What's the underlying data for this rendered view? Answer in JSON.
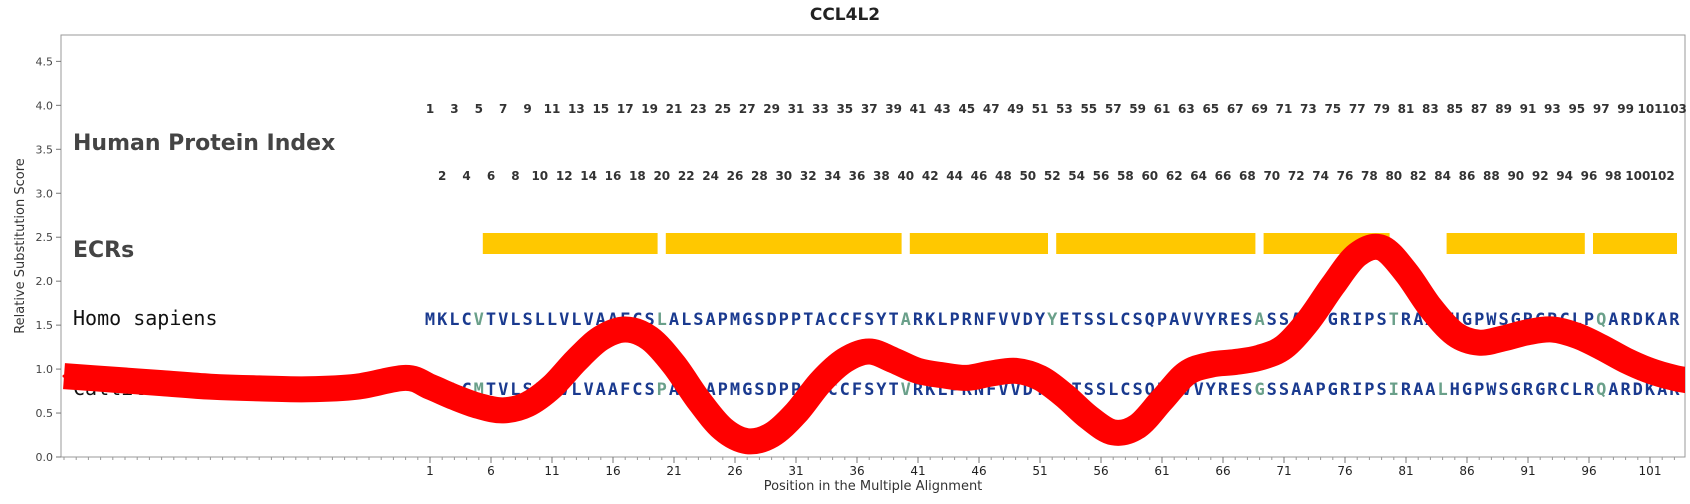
{
  "chart_data": {
    "type": "line",
    "title": "CCL4L2",
    "xlabel": "Position in the Multiple Alignment",
    "ylabel": "Relative Substitution Score",
    "xlim": [
      -29,
      105
    ],
    "ylim": [
      0,
      4.8
    ],
    "y_ticks": [
      0.0,
      0.5,
      1.0,
      1.5,
      2.0,
      2.5,
      3.0,
      3.5,
      4.0,
      4.5
    ],
    "x_ticks": [
      1,
      6,
      11,
      16,
      21,
      26,
      31,
      36,
      41,
      46,
      51,
      56,
      61,
      66,
      71,
      76,
      81,
      86,
      91,
      96,
      101
    ],
    "grid": false,
    "series": [
      {
        "color": "#ff0000",
        "x": [
          -29,
          -25,
          -21,
          -17,
          -13,
          -9,
          -5,
          -1,
          1,
          3,
          5,
          7,
          9,
          11,
          13,
          15,
          17,
          19,
          21,
          23,
          25,
          27,
          29,
          31,
          33,
          35,
          37,
          39,
          41,
          43,
          45,
          47,
          49,
          51,
          53,
          55,
          57,
          59,
          61,
          63,
          65,
          67,
          69,
          71,
          73,
          75,
          77,
          79,
          81,
          83,
          85,
          87,
          89,
          91,
          93,
          95,
          97,
          99,
          101,
          103,
          105
        ],
        "values": [
          0.92,
          0.88,
          0.84,
          0.8,
          0.78,
          0.77,
          0.8,
          0.9,
          0.8,
          0.68,
          0.58,
          0.53,
          0.6,
          0.8,
          1.1,
          1.35,
          1.45,
          1.35,
          1.05,
          0.65,
          0.32,
          0.18,
          0.25,
          0.5,
          0.85,
          1.1,
          1.2,
          1.1,
          0.98,
          0.93,
          0.9,
          0.95,
          0.98,
          0.9,
          0.7,
          0.45,
          0.28,
          0.35,
          0.65,
          0.95,
          1.05,
          1.08,
          1.13,
          1.25,
          1.55,
          1.95,
          2.3,
          2.38,
          2.1,
          1.7,
          1.4,
          1.3,
          1.35,
          1.42,
          1.45,
          1.38,
          1.25,
          1.1,
          0.98,
          0.9,
          0.85
        ]
      }
    ],
    "index_row_top": [
      "1",
      "3",
      "5",
      "7",
      "9",
      "11",
      "13",
      "15",
      "17",
      "19",
      "21",
      "23",
      "25",
      "27",
      "29",
      "31",
      "33",
      "35",
      "37",
      "39",
      "41",
      "43",
      "45",
      "47",
      "49",
      "51",
      "53",
      "55",
      "57",
      "59",
      "61",
      "63",
      "65",
      "67",
      "69",
      "71",
      "73",
      "75",
      "77",
      "79",
      "81",
      "83",
      "85",
      "87",
      "89",
      "91",
      "93",
      "95",
      "97",
      "99",
      "101",
      "103"
    ],
    "index_row_bottom": [
      "2",
      "4",
      "6",
      "8",
      "10",
      "12",
      "14",
      "16",
      "18",
      "20",
      "22",
      "24",
      "26",
      "28",
      "30",
      "32",
      "34",
      "36",
      "38",
      "40",
      "42",
      "44",
      "46",
      "48",
      "50",
      "52",
      "54",
      "56",
      "58",
      "60",
      "62",
      "64",
      "66",
      "68",
      "70",
      "72",
      "74",
      "76",
      "78",
      "80",
      "82",
      "84",
      "86",
      "88",
      "90",
      "92",
      "94",
      "96",
      "98",
      "100",
      "102"
    ],
    "ecr_segments": [
      [
        5,
        19
      ],
      [
        20,
        39
      ],
      [
        40,
        51
      ],
      [
        52,
        68
      ],
      [
        69,
        79
      ],
      [
        84,
        95
      ],
      [
        96,
        105
      ]
    ],
    "ecr_color": "#ffc800",
    "residue_color": "#1a3a8f",
    "variant_color": "#6aa08a",
    "rows": {
      "index_label": "Human Protein Index",
      "ecr_label": "ECRs",
      "species": [
        {
          "name": "Homo sapiens",
          "sequence": "MKLCVTVLSLLVLVAAFCSLALSAPMGSDPPTACCFSYTARKLPRNFVVDYYETSSLCSQPAVVYRESASSAAPGRIPSTRAAPHGPWSGRGRCLPQARDKAR",
          "variant_positions": [
            5,
            20,
            40,
            52,
            69,
            80,
            84,
            97
          ]
        },
        {
          "name": "Callithrix jacchus",
          "sequence": "MKLCMTVLSLLVLVAAFCSPALSAPMGSDPPTACCFSYTVRKLPRNFVVDYFETSSLCSQPAVVYRESGSSAAPGRIPSIRAALHGPWSGRGRCLRQARDKAR",
          "variant_positions": [
            5,
            20,
            40,
            52,
            69,
            80,
            84,
            97
          ]
        }
      ]
    }
  }
}
